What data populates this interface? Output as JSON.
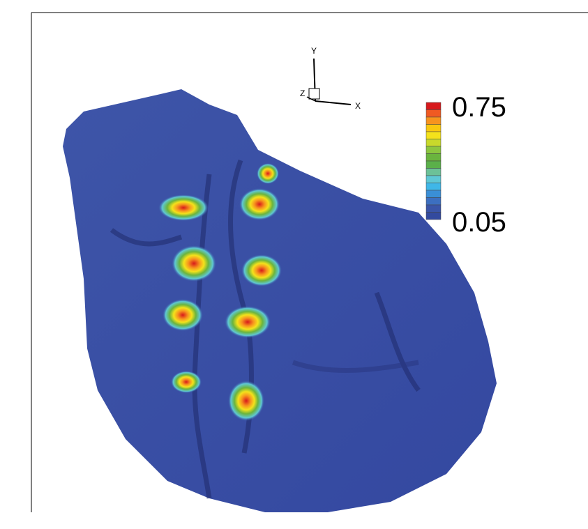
{
  "axis_triad": {
    "x": "X",
    "y": "Y",
    "z": "Z"
  },
  "legend": {
    "max": 0.75,
    "min": 0.05
  }
}
